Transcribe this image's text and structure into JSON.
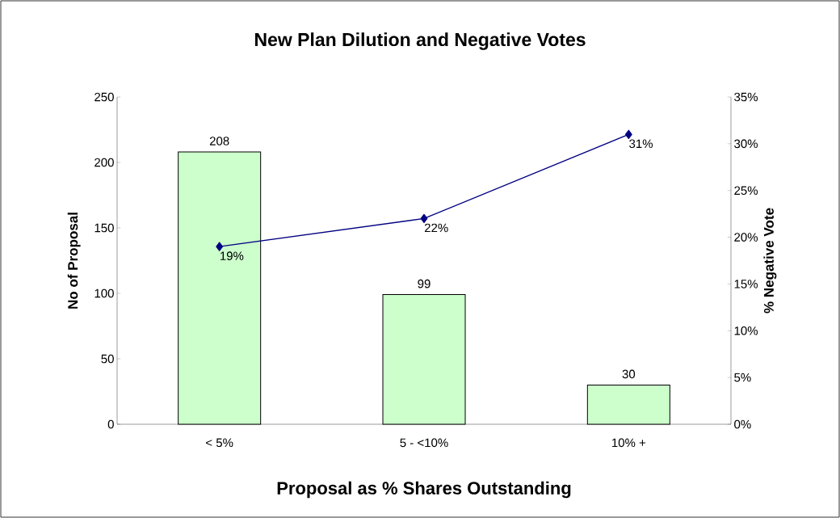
{
  "chart_data": {
    "type": "bar",
    "title": "New Plan Dilution and Negative Votes",
    "xlabel": "Proposal as % Shares Outstanding",
    "ylabel": "No of Proposal",
    "y2label": "% Negative Vote",
    "categories": [
      "< 5%",
      "5 - <10%",
      "10% +"
    ],
    "series": [
      {
        "color": "#ccffcc",
        "values": [
          208,
          99,
          30
        ],
        "value_labels": [
          "208",
          "99",
          "30"
        ]
      },
      {
        "type": "line",
        "axis": "y2",
        "color": "#000080",
        "values": [
          19,
          22,
          31
        ],
        "value_labels": [
          "19%",
          "22%",
          "31%"
        ]
      }
    ],
    "marker": "diamond",
    "ylim": [
      0,
      250
    ],
    "yticks": [
      0,
      50,
      100,
      150,
      200,
      250
    ],
    "y2lim": [
      0,
      35
    ],
    "y2ticks": [
      {
        "value": 0,
        "label": "0%"
      },
      {
        "value": 5,
        "label": "5%"
      },
      {
        "value": 10,
        "label": "10%"
      },
      {
        "value": 15,
        "label": "15%"
      },
      {
        "value": 20,
        "label": "20%"
      },
      {
        "value": 25,
        "label": "25%"
      },
      {
        "value": 30,
        "label": "30%"
      },
      {
        "value": 35,
        "label": "35%"
      }
    ]
  }
}
